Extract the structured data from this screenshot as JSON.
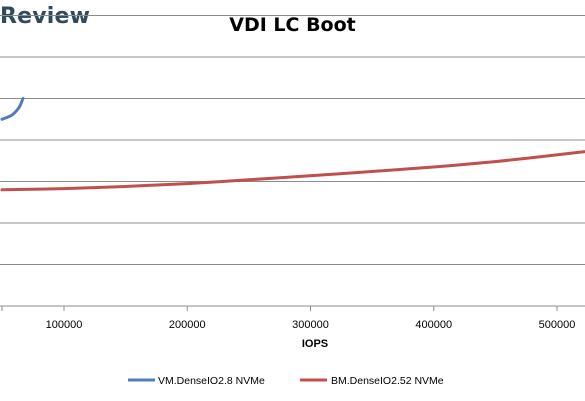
{
  "brand": {
    "text": "Review"
  },
  "chart_data": {
    "type": "line",
    "title": "VDI LC Boot",
    "xlabel": "IOPS",
    "ylabel": "",
    "xlim": [
      0,
      525000
    ],
    "x_ticks": [
      100000,
      200000,
      300000,
      400000,
      500000
    ],
    "x_tick_labels": [
      "100000",
      "200000",
      "300000",
      "400000",
      "500000"
    ],
    "ylim": [
      0,
      7
    ],
    "y_gridlines": [
      1,
      2,
      3,
      4,
      5,
      6,
      7
    ],
    "grid": true,
    "legend_position": "bottom",
    "series": [
      {
        "name": "VM.DenseIO2.8 NVMe",
        "color": "#4f7fb5",
        "points": [
          [
            0,
            4.5
          ],
          [
            8000,
            4.6
          ],
          [
            13000,
            4.75
          ],
          [
            15000,
            4.85
          ],
          [
            17000,
            5.0
          ]
        ]
      },
      {
        "name": "BM.DenseIO2.52 NVMe",
        "color": "#c0504d",
        "points": [
          [
            0,
            2.8
          ],
          [
            50000,
            2.83
          ],
          [
            100000,
            2.88
          ],
          [
            150000,
            2.95
          ],
          [
            200000,
            3.04
          ],
          [
            250000,
            3.14
          ],
          [
            300000,
            3.24
          ],
          [
            350000,
            3.35
          ],
          [
            400000,
            3.48
          ],
          [
            450000,
            3.64
          ],
          [
            500000,
            3.82
          ],
          [
            525000,
            3.93
          ]
        ]
      }
    ]
  }
}
